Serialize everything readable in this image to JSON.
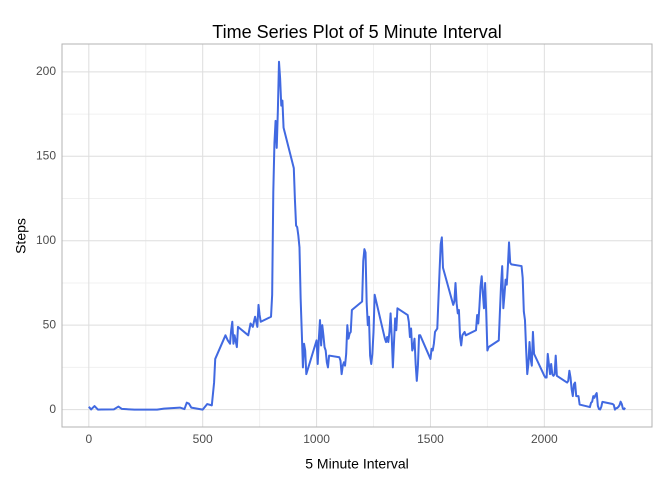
{
  "chart_data": {
    "type": "line",
    "title": "Time Series Plot of 5 Minute Interval",
    "x_label": "5 Minute Interval",
    "y_label": "Steps",
    "x": [
      0,
      10,
      25,
      40,
      55,
      110,
      130,
      145,
      200,
      230,
      300,
      330,
      400,
      420,
      430,
      440,
      450,
      500,
      520,
      540,
      550,
      555,
      600,
      610,
      620,
      625,
      630,
      635,
      640,
      650,
      655,
      700,
      710,
      720,
      730,
      740,
      745,
      750,
      755,
      800,
      805,
      810,
      815,
      820,
      825,
      830,
      835,
      840,
      845,
      850,
      855,
      900,
      905,
      910,
      915,
      920,
      925,
      930,
      935,
      940,
      945,
      950,
      955,
      1000,
      1005,
      1010,
      1015,
      1020,
      1025,
      1030,
      1035,
      1040,
      1045,
      1050,
      1055,
      1100,
      1105,
      1110,
      1115,
      1120,
      1125,
      1130,
      1135,
      1140,
      1145,
      1150,
      1155,
      1200,
      1205,
      1210,
      1215,
      1220,
      1225,
      1230,
      1235,
      1240,
      1245,
      1250,
      1255,
      1300,
      1305,
      1310,
      1315,
      1320,
      1325,
      1330,
      1335,
      1340,
      1345,
      1350,
      1355,
      1400,
      1405,
      1410,
      1415,
      1420,
      1425,
      1430,
      1435,
      1440,
      1445,
      1450,
      1455,
      1500,
      1505,
      1510,
      1515,
      1520,
      1525,
      1530,
      1535,
      1540,
      1545,
      1550,
      1555,
      1600,
      1605,
      1610,
      1615,
      1620,
      1625,
      1630,
      1635,
      1640,
      1645,
      1650,
      1655,
      1700,
      1705,
      1710,
      1715,
      1720,
      1725,
      1730,
      1735,
      1740,
      1745,
      1750,
      1755,
      1800,
      1805,
      1810,
      1815,
      1820,
      1825,
      1830,
      1835,
      1840,
      1845,
      1850,
      1855,
      1900,
      1905,
      1910,
      1915,
      1920,
      1925,
      1930,
      1935,
      1940,
      1945,
      1950,
      1955,
      2000,
      2005,
      2010,
      2015,
      2020,
      2025,
      2030,
      2035,
      2040,
      2045,
      2050,
      2055,
      2100,
      2105,
      2110,
      2115,
      2120,
      2125,
      2130,
      2135,
      2140,
      2145,
      2150,
      2155,
      2200,
      2205,
      2210,
      2215,
      2220,
      2225,
      2230,
      2235,
      2240,
      2245,
      2250,
      2255,
      2300,
      2305,
      2310,
      2315,
      2320,
      2325,
      2330,
      2335,
      2340,
      2345,
      2350,
      2355
    ],
    "series": [
      {
        "name": "Steps",
        "color": "#4169e1",
        "values": [
          1.7,
          0.1,
          2.1,
          0,
          0.1,
          0.15,
          1.8,
          0.4,
          0,
          0,
          0,
          0.6,
          1.2,
          0.3,
          4.1,
          3.5,
          1.2,
          0,
          3.3,
          2.5,
          16,
          30,
          44,
          41,
          39,
          47,
          52,
          39,
          44,
          37,
          49,
          44,
          51,
          49,
          55,
          49,
          62,
          56,
          52,
          55,
          68,
          129,
          158,
          171,
          155,
          177,
          206,
          196,
          180,
          183,
          167,
          143,
          124,
          109,
          108,
          103,
          96,
          66,
          46,
          25,
          39,
          35,
          21,
          41,
          27,
          42,
          53,
          38,
          50,
          44,
          37,
          35,
          28,
          25,
          32,
          31,
          29,
          21,
          26,
          28,
          26,
          33,
          50,
          42,
          45,
          46,
          59,
          64,
          88,
          95,
          93,
          63,
          50,
          55,
          32,
          27,
          33,
          46,
          68,
          42,
          40,
          43,
          40,
          46,
          57,
          43,
          25,
          40,
          54,
          47,
          60,
          56,
          52,
          43,
          48,
          35,
          37,
          42,
          27,
          17,
          26,
          44,
          44,
          30,
          36,
          35,
          39,
          46,
          47,
          48,
          65,
          82,
          98,
          102,
          84,
          62,
          64,
          75,
          63,
          57,
          59,
          43,
          38,
          44,
          45,
          46,
          44,
          47,
          56,
          51,
          61,
          73,
          79,
          69,
          60,
          75,
          57,
          35,
          37,
          41,
          58,
          74,
          85,
          60,
          68,
          77,
          74,
          85,
          99,
          87,
          86,
          85,
          78,
          58,
          53,
          36,
          21,
          27,
          40,
          30,
          26,
          46,
          33,
          20,
          19,
          19,
          33,
          27,
          21,
          27,
          21,
          20,
          21,
          32,
          20,
          16,
          17,
          23,
          19,
          12,
          8,
          15,
          16,
          8,
          8,
          8,
          3,
          1.5,
          4,
          4.7,
          8,
          7,
          8.7,
          9.8,
          2.2,
          0.3,
          0.1,
          1.6,
          4.6,
          3.3,
          2.8,
          0,
          0.8,
          0.96,
          1.6,
          2.6,
          4.7,
          3.3,
          0.6,
          0.2,
          1.1
        ]
      }
    ],
    "xlim": [
      -117.75,
      2472.75
    ],
    "ylim": [
      -10.3,
      216.5
    ],
    "xticks": [
      0,
      500,
      1000,
      1500,
      2000
    ],
    "yticks": [
      0,
      50,
      100,
      150,
      200
    ],
    "grid": true
  }
}
